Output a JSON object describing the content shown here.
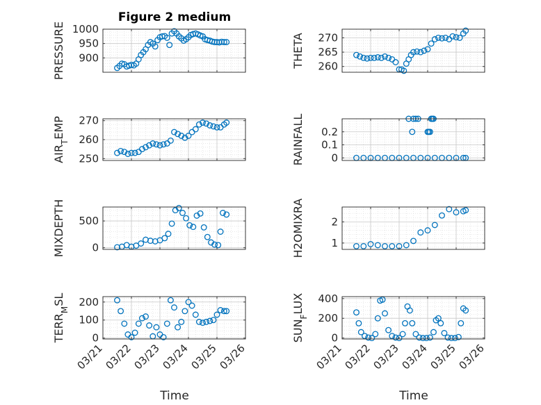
{
  "figure": {
    "title": "Figure 2 medium",
    "xlabel": "Time",
    "date_ticks": [
      "03/21",
      "03/22",
      "03/23",
      "03/24",
      "03/25",
      "03/26"
    ]
  },
  "colors": {
    "marker": "#0072BD",
    "grid": "#d9d9d9",
    "axis": "#262626"
  },
  "chart_data": [
    {
      "type": "scatter",
      "ylabel": "PRESSURE",
      "ylim": [
        850,
        1000
      ],
      "yticks": [
        900,
        950,
        1000
      ],
      "x": [
        "03/21 12:00",
        "03/21 14:00",
        "03/21 16:00",
        "03/21 18:00",
        "03/21 20:00",
        "03/21 22:00",
        "03/22 00:00",
        "03/22 02:00",
        "03/22 04:00",
        "03/22 06:00",
        "03/22 08:00",
        "03/22 10:00",
        "03/22 12:00",
        "03/22 14:00",
        "03/22 16:00",
        "03/22 18:00",
        "03/22 20:00",
        "03/22 22:00",
        "03/23 00:00",
        "03/23 02:00",
        "03/23 04:00",
        "03/23 06:00",
        "03/23 08:00",
        "03/23 10:00",
        "03/23 12:00",
        "03/23 14:00",
        "03/23 16:00",
        "03/23 18:00",
        "03/23 20:00",
        "03/23 22:00",
        "03/24 00:00",
        "03/24 02:00",
        "03/24 04:00",
        "03/24 06:00",
        "03/24 08:00",
        "03/24 10:00",
        "03/24 12:00",
        "03/24 14:00",
        "03/24 16:00",
        "03/24 18:00",
        "03/24 20:00",
        "03/24 22:00",
        "03/25 00:00",
        "03/25 02:00",
        "03/25 04:00",
        "03/25 06:00",
        "03/25 08:00"
      ],
      "y": [
        865,
        872,
        880,
        878,
        870,
        873,
        876,
        874,
        880,
        895,
        910,
        920,
        930,
        945,
        955,
        950,
        940,
        962,
        972,
        975,
        976,
        970,
        945,
        985,
        993,
        985,
        975,
        968,
        960,
        965,
        972,
        980,
        983,
        985,
        982,
        978,
        975,
        965,
        962,
        960,
        957,
        955,
        955,
        954,
        956,
        955,
        955
      ]
    },
    {
      "type": "scatter",
      "ylabel": "THETA",
      "ylim": [
        258,
        273
      ],
      "yticks": [
        260,
        265,
        270
      ],
      "x": [
        "03/21 12:00",
        "03/21 15:00",
        "03/21 18:00",
        "03/21 21:00",
        "03/22 00:00",
        "03/22 03:00",
        "03/22 06:00",
        "03/22 09:00",
        "03/22 12:00",
        "03/22 15:00",
        "03/22 18:00",
        "03/22 21:00",
        "03/23 00:00",
        "03/23 02:00",
        "03/23 04:00",
        "03/23 06:00",
        "03/23 08:00",
        "03/23 10:00",
        "03/23 12:00",
        "03/23 15:00",
        "03/23 18:00",
        "03/23 21:00",
        "03/24 00:00",
        "03/24 03:00",
        "03/24 06:00",
        "03/24 09:00",
        "03/24 12:00",
        "03/24 15:00",
        "03/24 18:00",
        "03/24 21:00",
        "03/25 00:00",
        "03/25 03:00",
        "03/25 06:00",
        "03/25 08:00"
      ],
      "y": [
        264,
        263.5,
        263,
        262.8,
        263,
        263,
        263.2,
        263,
        263.5,
        263,
        262.5,
        261.5,
        259,
        259,
        258.5,
        261,
        262.5,
        264,
        265,
        265.2,
        265,
        265.5,
        266,
        268,
        269.5,
        270,
        269.8,
        270,
        269.5,
        270.5,
        270.2,
        270,
        271.5,
        272.5
      ]
    },
    {
      "type": "scatter",
      "ylabel": "AIR_TEMP",
      "ylim": [
        249,
        271
      ],
      "yticks": [
        250,
        260,
        270
      ],
      "x": [
        "03/21 12:00",
        "03/21 15:00",
        "03/21 18:00",
        "03/21 21:00",
        "03/22 00:00",
        "03/22 03:00",
        "03/22 06:00",
        "03/22 09:00",
        "03/22 12:00",
        "03/22 15:00",
        "03/22 18:00",
        "03/22 21:00",
        "03/23 00:00",
        "03/23 03:00",
        "03/23 06:00",
        "03/23 09:00",
        "03/23 12:00",
        "03/23 15:00",
        "03/23 18:00",
        "03/23 21:00",
        "03/24 00:00",
        "03/24 03:00",
        "03/24 06:00",
        "03/24 09:00",
        "03/24 12:00",
        "03/24 15:00",
        "03/24 18:00",
        "03/24 21:00",
        "03/25 00:00",
        "03/25 03:00",
        "03/25 06:00",
        "03/25 08:00"
      ],
      "y": [
        253,
        254,
        253.5,
        252.5,
        253,
        253,
        253.5,
        255,
        256,
        257,
        258,
        257.5,
        257,
        257.5,
        258,
        259.5,
        264,
        263,
        262,
        261,
        262,
        264,
        265.5,
        268,
        269,
        268.5,
        267.5,
        267,
        266.5,
        266.5,
        268,
        269
      ]
    },
    {
      "type": "scatter",
      "ylabel": "RAINFALL",
      "ylim": [
        -0.02,
        0.3
      ],
      "yticks": [
        0,
        0.1,
        0.2
      ],
      "x": [
        "03/21 12:00",
        "03/21 18:00",
        "03/22 00:00",
        "03/22 06:00",
        "03/22 12:00",
        "03/22 18:00",
        "03/23 00:00",
        "03/23 06:00",
        "03/23 12:00",
        "03/23 18:00",
        "03/24 00:00",
        "03/24 06:00",
        "03/24 12:00",
        "03/24 18:00",
        "03/25 00:00",
        "03/25 06:00",
        "03/25 08:00",
        "03/23 08:00",
        "03/23 11:00",
        "03/23 12:00",
        "03/23 14:00",
        "03/23 16:00",
        "03/24 00:00",
        "03/24 01:00",
        "03/24 02:00",
        "03/24 03:00",
        "03/24 04:00",
        "03/24 05:00"
      ],
      "y": [
        0,
        0,
        0,
        0,
        0,
        0,
        0,
        0,
        0,
        0,
        0,
        0,
        0,
        0,
        0,
        0,
        0,
        0.3,
        0.2,
        0.3,
        0.3,
        0.3,
        0.2,
        0.2,
        0.2,
        0.3,
        0.3,
        0.3
      ]
    },
    {
      "type": "scatter",
      "ylabel": "MIXDEPTH",
      "ylim": [
        -30,
        760
      ],
      "yticks": [
        0,
        500
      ],
      "x": [
        "03/21 12:00",
        "03/21 16:00",
        "03/21 20:00",
        "03/22 00:00",
        "03/22 04:00",
        "03/22 08:00",
        "03/22 12:00",
        "03/22 16:00",
        "03/22 20:00",
        "03/23 00:00",
        "03/23 04:00",
        "03/23 07:00",
        "03/23 10:00",
        "03/23 13:00",
        "03/23 16:00",
        "03/23 19:00",
        "03/23 22:00",
        "03/24 01:00",
        "03/24 04:00",
        "03/24 07:00",
        "03/24 10:00",
        "03/24 13:00",
        "03/24 16:00",
        "03/24 19:00",
        "03/24 22:00",
        "03/25 01:00",
        "03/25 03:00",
        "03/25 05:00",
        "03/25 08:00"
      ],
      "y": [
        10,
        20,
        50,
        20,
        40,
        80,
        150,
        130,
        120,
        140,
        180,
        260,
        450,
        700,
        740,
        650,
        550,
        420,
        390,
        600,
        640,
        380,
        200,
        100,
        60,
        50,
        300,
        650,
        620
      ]
    },
    {
      "type": "scatter",
      "ylabel": "H2OMIXRA",
      "ylim": [
        0.7,
        2.7
      ],
      "yticks": [
        1,
        2
      ],
      "x": [
        "03/21 12:00",
        "03/21 18:00",
        "03/22 00:00",
        "03/22 06:00",
        "03/22 12:00",
        "03/22 18:00",
        "03/23 00:00",
        "03/23 06:00",
        "03/23 12:00",
        "03/23 18:00",
        "03/24 00:00",
        "03/24 06:00",
        "03/24 12:00",
        "03/24 18:00",
        "03/25 00:00",
        "03/25 06:00",
        "03/25 08:00"
      ],
      "y": [
        0.85,
        0.85,
        0.95,
        0.9,
        0.85,
        0.85,
        0.85,
        0.9,
        1.1,
        1.5,
        1.6,
        1.85,
        2.3,
        2.6,
        2.45,
        2.5,
        2.55
      ]
    },
    {
      "type": "scatter",
      "ylabel": "TERR_MSL",
      "ylim": [
        -5,
        230
      ],
      "yticks": [
        0,
        100,
        200
      ],
      "x": [
        "03/21 12:00",
        "03/21 15:00",
        "03/21 18:00",
        "03/21 21:00",
        "03/22 00:00",
        "03/22 03:00",
        "03/22 06:00",
        "03/22 09:00",
        "03/22 12:00",
        "03/22 15:00",
        "03/22 18:00",
        "03/22 21:00",
        "03/23 00:00",
        "03/23 03:00",
        "03/23 06:00",
        "03/23 09:00",
        "03/23 12:00",
        "03/23 15:00",
        "03/23 18:00",
        "03/23 21:00",
        "03/24 00:00",
        "03/24 03:00",
        "03/24 06:00",
        "03/24 09:00",
        "03/24 12:00",
        "03/24 15:00",
        "03/24 18:00",
        "03/24 21:00",
        "03/25 00:00",
        "03/25 03:00",
        "03/25 06:00",
        "03/25 08:00"
      ],
      "y": [
        210,
        150,
        80,
        20,
        5,
        30,
        80,
        110,
        120,
        70,
        10,
        60,
        20,
        5,
        80,
        210,
        170,
        60,
        90,
        150,
        200,
        180,
        130,
        90,
        85,
        90,
        95,
        100,
        130,
        155,
        150,
        150
      ]
    },
    {
      "type": "scatter",
      "ylabel": "SUN_FLUX",
      "ylim": [
        -10,
        420
      ],
      "yticks": [
        0,
        200,
        400
      ],
      "x": [
        "03/21 12:00",
        "03/21 14:00",
        "03/21 16:00",
        "03/21 19:00",
        "03/21 22:00",
        "03/22 01:00",
        "03/22 04:00",
        "03/22 06:00",
        "03/22 08:00",
        "03/22 10:00",
        "03/22 12:00",
        "03/22 15:00",
        "03/22 18:00",
        "03/22 21:00",
        "03/23 00:00",
        "03/23 03:00",
        "03/23 05:00",
        "03/23 07:00",
        "03/23 09:00",
        "03/23 11:00",
        "03/23 14:00",
        "03/23 17:00",
        "03/23 20:00",
        "03/23 23:00",
        "03/24 02:00",
        "03/24 05:00",
        "03/24 07:00",
        "03/24 09:00",
        "03/24 11:00",
        "03/24 14:00",
        "03/24 17:00",
        "03/24 20:00",
        "03/24 23:00",
        "03/25 02:00",
        "03/25 04:00",
        "03/25 06:00",
        "03/25 08:00"
      ],
      "y": [
        260,
        150,
        60,
        20,
        5,
        0,
        40,
        200,
        380,
        390,
        250,
        80,
        20,
        5,
        0,
        40,
        150,
        320,
        280,
        150,
        40,
        5,
        0,
        0,
        5,
        60,
        180,
        200,
        150,
        50,
        5,
        0,
        0,
        10,
        150,
        300,
        280
      ]
    }
  ]
}
